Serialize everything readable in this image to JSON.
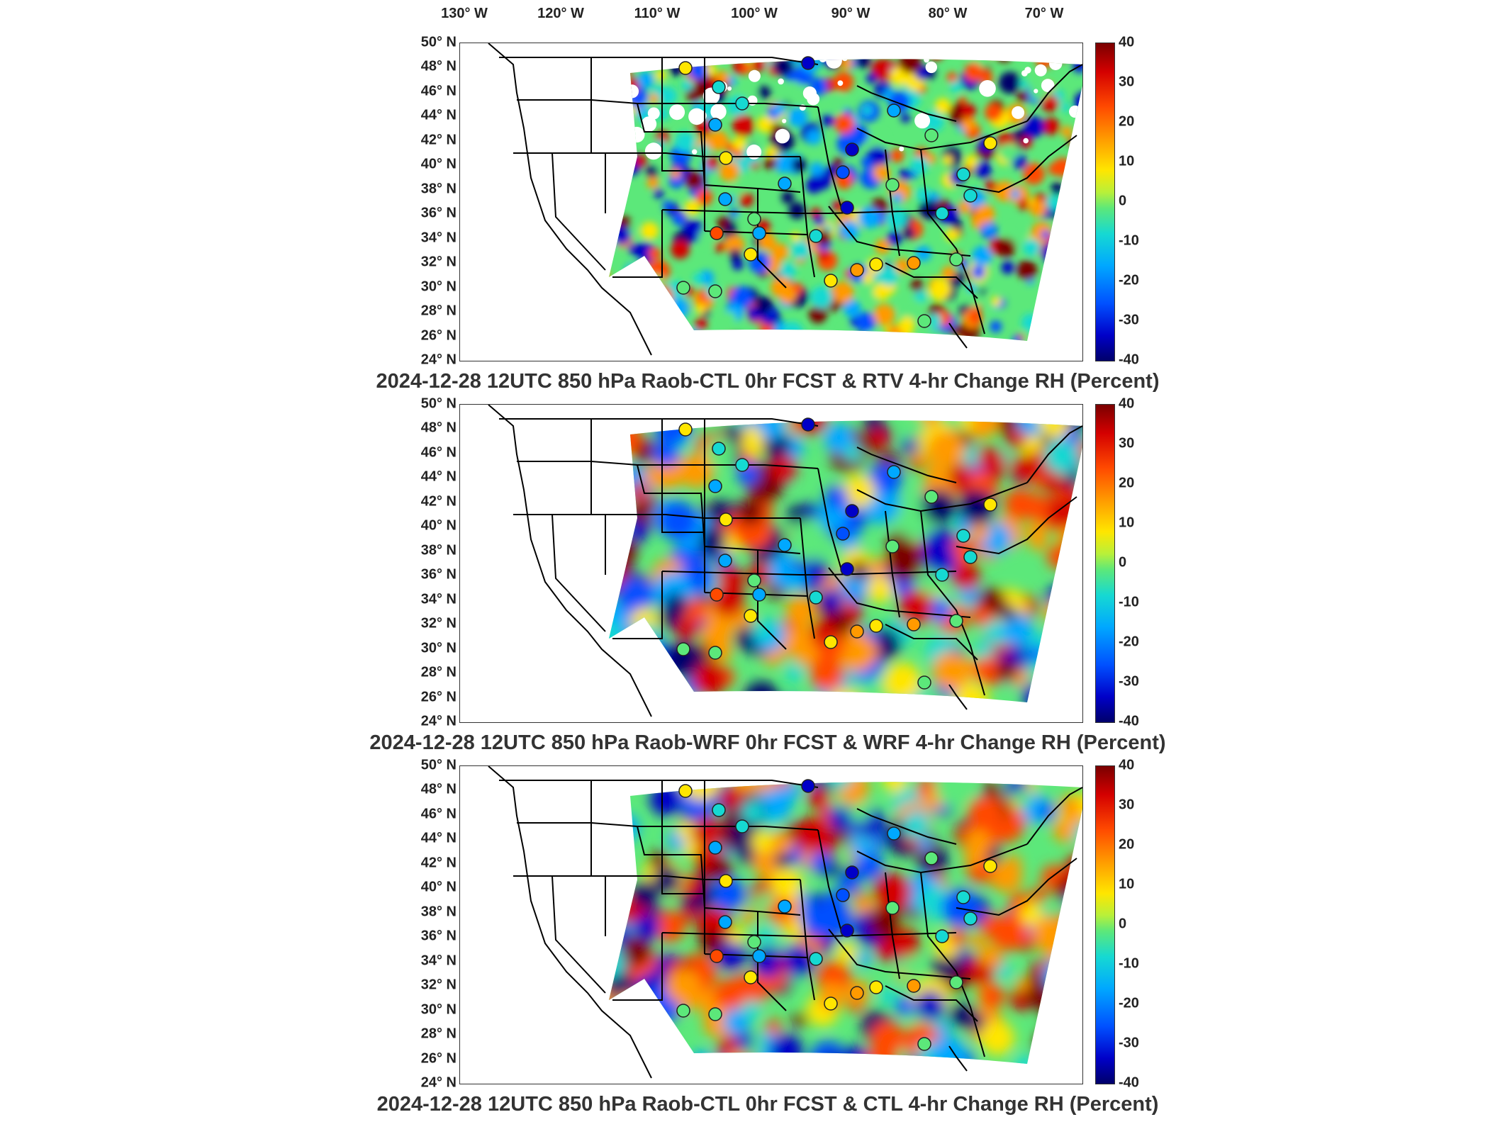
{
  "longitude_labels": [
    "130° W",
    "120° W",
    "110° W",
    "100° W",
    "90° W",
    "80° W",
    "70° W"
  ],
  "latitude_labels": [
    "50° N",
    "48° N",
    "46° N",
    "44° N",
    "42° N",
    "40° N",
    "38° N",
    "36° N",
    "34° N",
    "32° N",
    "30° N",
    "28° N",
    "26° N",
    "24° N"
  ],
  "colorbar": {
    "ticks": [
      "40",
      "30",
      "20",
      "10",
      "0",
      "-10",
      "-20",
      "-30",
      "-40"
    ],
    "range": [
      -40,
      40
    ],
    "colors": [
      "#7a0000",
      "#d40000",
      "#ff4a00",
      "#ff9a00",
      "#ffe600",
      "#5ce87a",
      "#16d9d2",
      "#00a8ff",
      "#0050ff",
      "#0000c8",
      "#00006a"
    ]
  },
  "panels": [
    {
      "title": "2024-12-28 12UTC 850 hPa Raob-CTL 0hr FCST & RTV 4-hr Change RH (Percent)"
    },
    {
      "title": "2024-12-28 12UTC 850 hPa Raob-WRF 0hr FCST & WRF 4-hr Change RH (Percent)"
    },
    {
      "title": "2024-12-28 12UTC 850 hPa Raob-CTL 0hr FCST & CTL 4-hr Change RH (Percent)"
    }
  ]
}
